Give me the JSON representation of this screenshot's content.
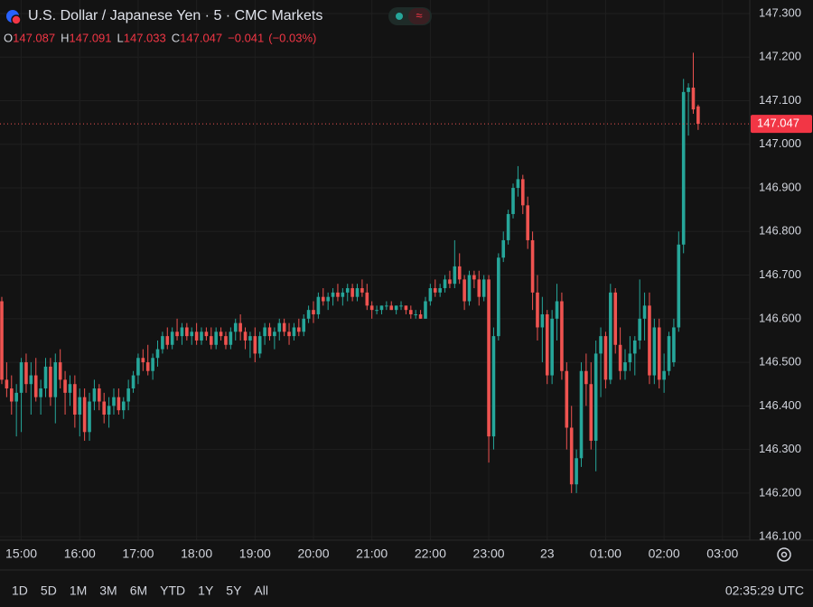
{
  "chart_data": {
    "type": "candlestick",
    "title": "U.S. Dollar / Japanese Yen · 5 · CMC Markets",
    "ohlc_labels": [
      "O",
      "H",
      "L",
      "C"
    ],
    "ohlc_values": [
      147.087,
      147.091,
      147.033,
      147.047
    ],
    "change": "−0.041",
    "change_pct": "(−0.03%)",
    "last_price": 147.047,
    "up_color": "#26a69a",
    "down_color": "#ef5350",
    "grid": true,
    "xlim": [
      -0.37,
      153.6
    ],
    "xticks": [
      {
        "value": 4,
        "label": "15:00"
      },
      {
        "value": 16,
        "label": "16:00"
      },
      {
        "value": 28,
        "label": "17:00"
      },
      {
        "value": 40,
        "label": "18:00"
      },
      {
        "value": 52,
        "label": "19:00"
      },
      {
        "value": 64,
        "label": "20:00"
      },
      {
        "value": 76,
        "label": "21:00"
      },
      {
        "value": 88,
        "label": "22:00"
      },
      {
        "value": 100,
        "label": "23:00"
      },
      {
        "value": 112,
        "label": "23"
      },
      {
        "value": 124,
        "label": "01:00"
      },
      {
        "value": 136,
        "label": "02:00"
      },
      {
        "value": 148,
        "label": "03:00"
      }
    ],
    "ylim": [
      146.092,
      147.331
    ],
    "yticks": [
      {
        "value": 146.1,
        "label": "146.100"
      },
      {
        "value": 146.2,
        "label": "146.200"
      },
      {
        "value": 146.3,
        "label": "146.300"
      },
      {
        "value": 146.4,
        "label": "146.400"
      },
      {
        "value": 146.5,
        "label": "146.500"
      },
      {
        "value": 146.6,
        "label": "146.600"
      },
      {
        "value": 146.7,
        "label": "146.700"
      },
      {
        "value": 146.8,
        "label": "146.800"
      },
      {
        "value": 146.9,
        "label": "146.900"
      },
      {
        "value": 147.0,
        "label": "147.000"
      },
      {
        "value": 147.1,
        "label": "147.100"
      },
      {
        "value": 147.2,
        "label": "147.200"
      },
      {
        "value": 147.3,
        "label": "147.300"
      }
    ],
    "candles": [
      [
        146.64,
        146.65,
        146.45,
        146.46
      ],
      [
        146.46,
        146.5,
        146.42,
        146.44
      ],
      [
        146.44,
        146.47,
        146.38,
        146.41
      ],
      [
        146.41,
        146.45,
        146.33,
        146.43
      ],
      [
        146.43,
        146.51,
        146.34,
        146.5
      ],
      [
        146.5,
        146.52,
        146.43,
        146.45
      ],
      [
        146.45,
        146.5,
        146.38,
        146.47
      ],
      [
        146.47,
        146.51,
        146.41,
        146.42
      ],
      [
        146.42,
        146.46,
        146.38,
        146.44
      ],
      [
        146.44,
        146.51,
        146.42,
        146.49
      ],
      [
        146.49,
        146.51,
        146.4,
        146.42
      ],
      [
        146.42,
        146.52,
        146.36,
        146.5
      ],
      [
        146.5,
        146.53,
        146.44,
        146.46
      ],
      [
        146.46,
        146.48,
        146.38,
        146.43
      ],
      [
        146.43,
        146.47,
        146.4,
        146.45
      ],
      [
        146.45,
        146.47,
        146.35,
        146.38
      ],
      [
        146.38,
        146.44,
        146.33,
        146.42
      ],
      [
        146.42,
        146.44,
        146.32,
        146.34
      ],
      [
        146.34,
        146.43,
        146.32,
        146.41
      ],
      [
        146.41,
        146.46,
        146.39,
        146.44
      ],
      [
        146.44,
        146.45,
        146.39,
        146.41
      ],
      [
        146.41,
        146.43,
        146.36,
        146.38
      ],
      [
        146.38,
        146.42,
        146.35,
        146.4
      ],
      [
        146.4,
        146.44,
        146.38,
        146.42
      ],
      [
        146.42,
        146.44,
        146.38,
        146.39
      ],
      [
        146.39,
        146.42,
        146.37,
        146.41
      ],
      [
        146.41,
        146.46,
        146.39,
        146.44
      ],
      [
        146.44,
        146.48,
        146.43,
        146.47
      ],
      [
        146.47,
        146.52,
        146.45,
        146.51
      ],
      [
        146.51,
        146.53,
        146.48,
        146.5
      ],
      [
        146.5,
        146.54,
        146.47,
        146.48
      ],
      [
        146.48,
        146.52,
        146.46,
        146.51
      ],
      [
        146.51,
        146.55,
        146.49,
        146.53
      ],
      [
        146.53,
        146.57,
        146.52,
        146.56
      ],
      [
        146.56,
        146.58,
        146.53,
        146.54
      ],
      [
        146.54,
        146.58,
        146.53,
        146.57
      ],
      [
        146.57,
        146.6,
        146.55,
        146.56
      ],
      [
        146.56,
        146.59,
        146.54,
        146.58
      ],
      [
        146.58,
        146.59,
        146.55,
        146.56
      ],
      [
        146.56,
        146.58,
        146.54,
        146.57
      ],
      [
        146.57,
        146.59,
        146.54,
        146.55
      ],
      [
        146.55,
        146.58,
        146.54,
        146.57
      ],
      [
        146.57,
        146.58,
        146.55,
        146.56
      ],
      [
        146.56,
        146.58,
        146.53,
        146.54
      ],
      [
        146.54,
        146.58,
        146.53,
        146.57
      ],
      [
        146.57,
        146.58,
        146.55,
        146.56
      ],
      [
        146.56,
        146.57,
        146.53,
        146.54
      ],
      [
        146.54,
        146.58,
        146.53,
        146.57
      ],
      [
        146.57,
        146.6,
        146.55,
        146.59
      ],
      [
        146.59,
        146.61,
        146.55,
        146.57
      ],
      [
        146.57,
        146.58,
        146.53,
        146.55
      ],
      [
        146.55,
        146.57,
        146.51,
        146.56
      ],
      [
        146.56,
        146.58,
        146.5,
        146.52
      ],
      [
        146.52,
        146.57,
        146.51,
        146.56
      ],
      [
        146.56,
        146.59,
        146.54,
        146.58
      ],
      [
        146.58,
        146.59,
        146.55,
        146.56
      ],
      [
        146.56,
        146.58,
        146.53,
        146.57
      ],
      [
        146.57,
        146.6,
        146.55,
        146.59
      ],
      [
        146.59,
        146.6,
        146.56,
        146.57
      ],
      [
        146.57,
        146.59,
        146.54,
        146.56
      ],
      [
        146.56,
        146.59,
        146.55,
        146.58
      ],
      [
        146.58,
        146.6,
        146.56,
        146.57
      ],
      [
        146.57,
        146.61,
        146.56,
        146.6
      ],
      [
        146.6,
        146.63,
        146.59,
        146.62
      ],
      [
        146.62,
        146.64,
        146.59,
        146.61
      ],
      [
        146.61,
        146.66,
        146.6,
        146.65
      ],
      [
        146.65,
        146.67,
        146.63,
        146.64
      ],
      [
        146.64,
        146.66,
        146.62,
        146.65
      ],
      [
        146.65,
        146.67,
        146.63,
        146.66
      ],
      [
        146.66,
        146.68,
        146.64,
        146.65
      ],
      [
        146.65,
        146.67,
        146.63,
        146.66
      ],
      [
        146.66,
        146.68,
        146.64,
        146.67
      ],
      [
        146.67,
        146.68,
        146.64,
        146.65
      ],
      [
        146.65,
        146.68,
        146.64,
        146.67
      ],
      [
        146.67,
        146.69,
        146.65,
        146.66
      ],
      [
        146.66,
        146.68,
        146.62,
        146.63
      ],
      [
        146.63,
        146.64,
        146.6,
        146.62
      ],
      [
        146.62,
        146.63,
        146.61,
        146.62
      ],
      [
        146.62,
        146.63,
        146.61,
        146.63
      ],
      [
        146.63,
        146.64,
        146.62,
        146.63
      ],
      [
        146.63,
        146.64,
        146.62,
        146.62
      ],
      [
        146.62,
        146.63,
        146.61,
        146.63
      ],
      [
        146.63,
        146.64,
        146.62,
        146.63
      ],
      [
        146.63,
        146.63,
        146.61,
        146.62
      ],
      [
        146.62,
        146.63,
        146.6,
        146.61
      ],
      [
        146.61,
        146.62,
        146.6,
        146.61
      ],
      [
        146.61,
        146.62,
        146.6,
        146.6
      ],
      [
        146.6,
        146.65,
        146.6,
        146.64
      ],
      [
        146.64,
        146.68,
        146.63,
        146.67
      ],
      [
        146.67,
        146.69,
        146.65,
        146.66
      ],
      [
        146.66,
        146.68,
        146.65,
        146.67
      ],
      [
        146.67,
        146.7,
        146.66,
        146.69
      ],
      [
        146.69,
        146.71,
        146.67,
        146.68
      ],
      [
        146.68,
        146.78,
        146.67,
        146.72
      ],
      [
        146.72,
        146.75,
        146.68,
        146.69
      ],
      [
        146.69,
        146.7,
        146.62,
        146.64
      ],
      [
        146.64,
        146.71,
        146.63,
        146.7
      ],
      [
        146.7,
        146.71,
        146.67,
        146.69
      ],
      [
        146.69,
        146.71,
        146.63,
        146.65
      ],
      [
        146.65,
        146.7,
        146.64,
        146.69
      ],
      [
        146.69,
        146.7,
        146.27,
        146.33
      ],
      [
        146.33,
        146.58,
        146.3,
        146.56
      ],
      [
        146.56,
        146.75,
        146.55,
        146.74
      ],
      [
        146.74,
        146.8,
        146.73,
        146.78
      ],
      [
        146.78,
        146.85,
        146.77,
        146.84
      ],
      [
        146.84,
        146.91,
        146.83,
        146.9
      ],
      [
        146.9,
        146.95,
        146.88,
        146.92
      ],
      [
        146.92,
        146.93,
        146.84,
        146.86
      ],
      [
        146.86,
        146.88,
        146.76,
        146.78
      ],
      [
        146.78,
        146.8,
        146.62,
        146.66
      ],
      [
        146.66,
        146.7,
        146.55,
        146.58
      ],
      [
        146.58,
        146.65,
        146.5,
        146.61
      ],
      [
        146.61,
        146.62,
        146.45,
        146.47
      ],
      [
        146.47,
        146.62,
        146.45,
        146.6
      ],
      [
        146.6,
        146.68,
        146.55,
        146.64
      ],
      [
        146.64,
        146.66,
        146.46,
        146.48
      ],
      [
        146.48,
        146.5,
        146.3,
        146.35
      ],
      [
        146.35,
        146.4,
        146.2,
        146.22
      ],
      [
        146.22,
        146.3,
        146.2,
        146.28
      ],
      [
        146.28,
        146.5,
        146.26,
        146.48
      ],
      [
        146.48,
        146.52,
        146.4,
        146.45
      ],
      [
        146.45,
        146.5,
        146.3,
        146.32
      ],
      [
        146.32,
        146.55,
        146.25,
        146.52
      ],
      [
        146.52,
        146.58,
        146.42,
        146.56
      ],
      [
        146.56,
        146.57,
        146.44,
        146.46
      ],
      [
        146.46,
        146.68,
        146.45,
        146.66
      ],
      [
        146.66,
        146.67,
        146.52,
        146.54
      ],
      [
        146.54,
        146.58,
        146.46,
        146.48
      ],
      [
        146.48,
        146.53,
        146.46,
        146.5
      ],
      [
        146.5,
        146.56,
        146.48,
        146.52
      ],
      [
        146.52,
        146.56,
        146.47,
        146.55
      ],
      [
        146.55,
        146.69,
        146.53,
        146.6
      ],
      [
        146.6,
        146.66,
        146.55,
        146.63
      ],
      [
        146.63,
        146.66,
        146.45,
        146.47
      ],
      [
        146.47,
        146.6,
        146.45,
        146.58
      ],
      [
        146.58,
        146.6,
        146.44,
        146.46
      ],
      [
        146.46,
        146.52,
        146.43,
        146.48
      ],
      [
        146.48,
        146.57,
        146.47,
        146.56
      ],
      [
        146.5,
        146.6,
        146.49,
        146.58
      ],
      [
        146.58,
        146.8,
        146.57,
        146.77
      ],
      [
        146.77,
        147.15,
        146.75,
        147.12
      ],
      [
        147.12,
        147.14,
        147.02,
        147.13
      ],
      [
        147.13,
        147.21,
        147.07,
        147.08
      ],
      [
        147.087,
        147.091,
        147.033,
        147.047
      ]
    ]
  },
  "toolbar": {
    "ranges": [
      "1D",
      "5D",
      "1M",
      "3M",
      "6M",
      "YTD",
      "1Y",
      "5Y",
      "All"
    ],
    "clock": "02:35:29 UTC"
  }
}
